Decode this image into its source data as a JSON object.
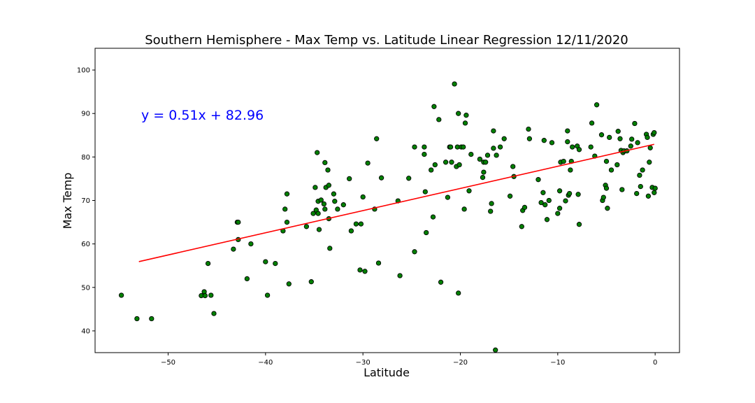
{
  "chart_data": {
    "type": "scatter",
    "title": "Southern Hemisphere - Max Temp vs. Latitude Linear Regression 12/11/2020",
    "xlabel": "Latitude",
    "ylabel": "Max Temp",
    "xlim": [
      -57.5,
      2.5
    ],
    "ylim": [
      35,
      105
    ],
    "xticks": [
      -50,
      -40,
      -30,
      -20,
      -10,
      0
    ],
    "yticks": [
      40,
      50,
      60,
      70,
      80,
      90,
      100
    ],
    "grid": false,
    "point_color": "#008000",
    "point_edge_color": "#000000",
    "line_color": "#ff0000",
    "equation_color": "#0000ff",
    "regression": {
      "slope": 0.51,
      "intercept": 82.96,
      "x_range": [
        -53.0,
        -0.1
      ],
      "equation": "y = 0.51x + 82.96"
    },
    "points": [
      [
        -54.8,
        48.2
      ],
      [
        -53.2,
        42.8
      ],
      [
        -51.7,
        42.8
      ],
      [
        -46.6,
        48.1
      ],
      [
        -46.3,
        49.0
      ],
      [
        -46.2,
        48.1
      ],
      [
        -45.9,
        55.5
      ],
      [
        -45.6,
        48.2
      ],
      [
        -45.3,
        44.0
      ],
      [
        -43.3,
        58.8
      ],
      [
        -42.9,
        65.0
      ],
      [
        -42.8,
        65.0
      ],
      [
        -42.8,
        61.0
      ],
      [
        -41.5,
        60.0
      ],
      [
        -41.9,
        52.0
      ],
      [
        -40.0,
        55.9
      ],
      [
        -39.8,
        48.2
      ],
      [
        -39.0,
        55.5
      ],
      [
        -38.2,
        63.0
      ],
      [
        -38.0,
        68.0
      ],
      [
        -37.8,
        71.5
      ],
      [
        -37.8,
        65.0
      ],
      [
        -37.6,
        50.8
      ],
      [
        -35.8,
        64.0
      ],
      [
        -35.3,
        51.3
      ],
      [
        -35.1,
        67.0
      ],
      [
        -34.9,
        73.0
      ],
      [
        -34.8,
        67.8
      ],
      [
        -34.7,
        81.0
      ],
      [
        -34.6,
        67.0
      ],
      [
        -34.6,
        69.8
      ],
      [
        -34.5,
        63.3
      ],
      [
        -34.3,
        70.1
      ],
      [
        -34.0,
        69.2
      ],
      [
        -33.9,
        68.0
      ],
      [
        -33.9,
        78.7
      ],
      [
        -33.8,
        73.0
      ],
      [
        -33.6,
        77.0
      ],
      [
        -33.5,
        73.5
      ],
      [
        -33.4,
        59.0
      ],
      [
        -33.5,
        65.8
      ],
      [
        -33.0,
        71.5
      ],
      [
        -32.9,
        69.8
      ],
      [
        -32.6,
        68.0
      ],
      [
        -32.0,
        69.0
      ],
      [
        -31.4,
        75.0
      ],
      [
        -31.2,
        63.0
      ],
      [
        -30.7,
        64.6
      ],
      [
        -30.2,
        64.6
      ],
      [
        -30.3,
        54.0
      ],
      [
        -30.0,
        70.8
      ],
      [
        -29.8,
        53.7
      ],
      [
        -29.5,
        78.6
      ],
      [
        -28.8,
        68.0
      ],
      [
        -28.6,
        84.2
      ],
      [
        -28.4,
        55.6
      ],
      [
        -28.1,
        75.2
      ],
      [
        -26.4,
        69.9
      ],
      [
        -26.2,
        52.7
      ],
      [
        -25.3,
        75.1
      ],
      [
        -24.7,
        82.3
      ],
      [
        -24.7,
        58.2
      ],
      [
        -23.7,
        82.3
      ],
      [
        -23.7,
        80.6
      ],
      [
        -23.6,
        72.0
      ],
      [
        -23.5,
        62.6
      ],
      [
        -23.0,
        77.0
      ],
      [
        -22.8,
        66.2
      ],
      [
        -22.7,
        91.6
      ],
      [
        -22.6,
        78.2
      ],
      [
        -22.2,
        88.6
      ],
      [
        -22.0,
        51.2
      ],
      [
        -21.5,
        78.8
      ],
      [
        -21.3,
        70.7
      ],
      [
        -21.1,
        82.3
      ],
      [
        -21.0,
        82.3
      ],
      [
        -20.9,
        78.8
      ],
      [
        -20.6,
        96.8
      ],
      [
        -20.4,
        77.8
      ],
      [
        -20.3,
        82.3
      ],
      [
        -20.2,
        90.0
      ],
      [
        -20.2,
        48.7
      ],
      [
        -20.1,
        78.2
      ],
      [
        -19.9,
        82.3
      ],
      [
        -19.7,
        82.3
      ],
      [
        -19.6,
        68.0
      ],
      [
        -19.5,
        87.8
      ],
      [
        -19.4,
        89.6
      ],
      [
        -19.1,
        72.2
      ],
      [
        -18.9,
        80.6
      ],
      [
        -18.0,
        79.5
      ],
      [
        -17.7,
        75.3
      ],
      [
        -17.6,
        76.5
      ],
      [
        -17.6,
        78.8
      ],
      [
        -17.4,
        78.8
      ],
      [
        -17.2,
        80.4
      ],
      [
        -16.9,
        67.5
      ],
      [
        -16.8,
        69.3
      ],
      [
        -16.6,
        86.0
      ],
      [
        -16.6,
        82.0
      ],
      [
        -16.4,
        35.6
      ],
      [
        -16.3,
        80.4
      ],
      [
        -15.9,
        82.3
      ],
      [
        -15.5,
        84.2
      ],
      [
        -14.9,
        71.0
      ],
      [
        -14.6,
        77.8
      ],
      [
        -14.5,
        75.5
      ],
      [
        -13.7,
        64.0
      ],
      [
        -13.6,
        67.7
      ],
      [
        -13.4,
        68.4
      ],
      [
        -13.0,
        86.4
      ],
      [
        -12.9,
        84.2
      ],
      [
        -12.0,
        74.8
      ],
      [
        -11.7,
        69.5
      ],
      [
        -11.5,
        71.8
      ],
      [
        -11.4,
        83.8
      ],
      [
        -11.3,
        69.0
      ],
      [
        -11.1,
        65.6
      ],
      [
        -10.9,
        70.0
      ],
      [
        -10.6,
        83.3
      ],
      [
        -10.0,
        67.0
      ],
      [
        -9.8,
        68.2
      ],
      [
        -9.8,
        72.2
      ],
      [
        -9.7,
        78.8
      ],
      [
        -9.4,
        79.0
      ],
      [
        -9.2,
        69.9
      ],
      [
        -9.0,
        86.0
      ],
      [
        -9.0,
        83.5
      ],
      [
        -8.9,
        71.2
      ],
      [
        -8.8,
        71.6
      ],
      [
        -8.7,
        77.0
      ],
      [
        -8.5,
        82.3
      ],
      [
        -8.6,
        79.0
      ],
      [
        -8.0,
        82.5
      ],
      [
        -7.9,
        71.4
      ],
      [
        -7.8,
        81.7
      ],
      [
        -7.8,
        64.5
      ],
      [
        -6.6,
        82.3
      ],
      [
        -6.5,
        87.8
      ],
      [
        -6.2,
        80.2
      ],
      [
        -6.0,
        92.0
      ],
      [
        -5.5,
        85.1
      ],
      [
        -5.4,
        70.0
      ],
      [
        -5.3,
        70.7
      ],
      [
        -5.1,
        73.5
      ],
      [
        -5.0,
        72.8
      ],
      [
        -5.0,
        79.0
      ],
      [
        -4.9,
        68.2
      ],
      [
        -4.7,
        84.5
      ],
      [
        -4.5,
        77.0
      ],
      [
        -3.9,
        78.2
      ],
      [
        -3.8,
        85.9
      ],
      [
        -3.6,
        84.2
      ],
      [
        -3.5,
        81.5
      ],
      [
        -3.4,
        72.5
      ],
      [
        -3.3,
        81.0
      ],
      [
        -3.2,
        81.4
      ],
      [
        -2.9,
        81.4
      ],
      [
        -2.5,
        82.5
      ],
      [
        -2.4,
        84.1
      ],
      [
        -2.1,
        87.7
      ],
      [
        -1.9,
        71.6
      ],
      [
        -1.8,
        83.3
      ],
      [
        -1.6,
        75.8
      ],
      [
        -1.5,
        73.2
      ],
      [
        -1.3,
        77.0
      ],
      [
        -0.9,
        85.2
      ],
      [
        -0.8,
        84.5
      ],
      [
        -0.7,
        71.0
      ],
      [
        -0.6,
        78.8
      ],
      [
        -0.5,
        82.1
      ],
      [
        -0.3,
        73.0
      ],
      [
        -0.2,
        85.2
      ],
      [
        -0.1,
        85.6
      ],
      [
        -0.1,
        71.8
      ],
      [
        0.0,
        72.8
      ]
    ]
  }
}
